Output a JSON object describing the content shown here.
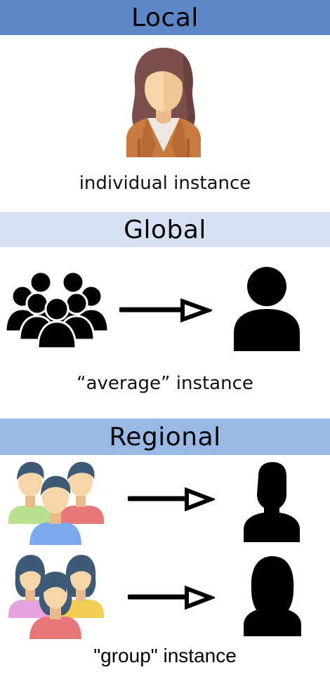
{
  "sections": {
    "local": {
      "title": "Local",
      "caption": "individual instance"
    },
    "global": {
      "title": "Global",
      "caption": "“average” instance"
    },
    "regional": {
      "title": "Regional",
      "caption": "\"group\" instance"
    }
  },
  "icons": {
    "local_person": "woman-avatar-icon",
    "global_crowd": "crowd-silhouette-icon",
    "global_average": "person-silhouette-icon",
    "regional_men_group": "men-group-icon",
    "regional_men_average": "man-silhouette-icon",
    "regional_women_group": "women-group-icon",
    "regional_women_average": "woman-silhouette-icon",
    "arrow": "arrow-right-icon"
  },
  "colors": {
    "local_band": "#5b87c9",
    "global_band": "#d6e2f4",
    "regional_band": "#9ab8e4"
  }
}
